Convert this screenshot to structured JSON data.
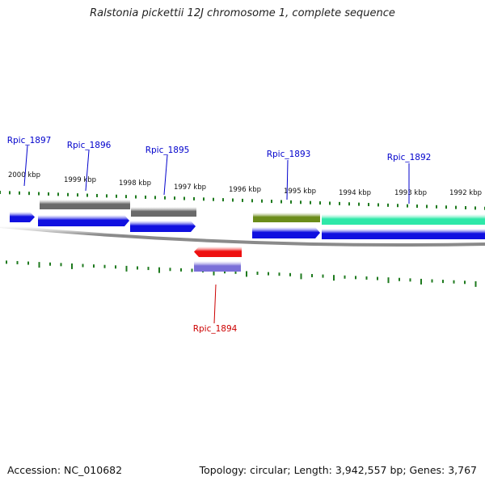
{
  "title": "Ralstonia pickettii 12J chromosome 1, complete sequence",
  "footer": {
    "accession": "Accession: NC_010682",
    "summary": "Topology: circular; Length: 3,942,557 bp; Genes: 3,767"
  },
  "colors": {
    "backbone": "#8a8a8a",
    "tick": "#1e7a1e",
    "cds": "#1010e0",
    "gene_forward_other": "#6a6a6a",
    "gene_reverse": "#ee1010",
    "gene_reverse_cds": "#7a70d8",
    "gene_olive": "#6b8c1a",
    "gene_teal": "#2ee8a8",
    "label_forward": "#0000cc",
    "label_reverse": "#cc0000"
  },
  "scale": {
    "unit": "kbp",
    "labels": [
      "2000 kbp",
      "1999 kbp",
      "1998 kbp",
      "1997 kbp",
      "1996 kbp",
      "1995 kbp",
      "1994 kbp",
      "1993 kbp",
      "1992 kbp"
    ]
  },
  "genes": [
    {
      "locus": "Rpic_1897",
      "strand": "+"
    },
    {
      "locus": "Rpic_1896",
      "strand": "+"
    },
    {
      "locus": "Rpic_1895",
      "strand": "+"
    },
    {
      "locus": "Rpic_1894",
      "strand": "-"
    },
    {
      "locus": "Rpic_1893",
      "strand": "+"
    },
    {
      "locus": "Rpic_1892",
      "strand": "+"
    }
  ]
}
